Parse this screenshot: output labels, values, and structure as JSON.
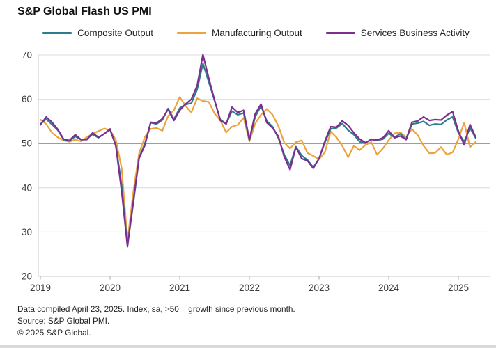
{
  "title": "S&P Global Flash US PMI",
  "footnotes": {
    "line1": "Data compiled April 23, 2025. Index, sa, >50 = growth since previous month.",
    "line2": "Source: S&P Global PMI.",
    "line3": "© 2025 S&P Global."
  },
  "chart_data": {
    "type": "line",
    "title": "S&P Global Flash US PMI",
    "frequency": "monthly",
    "x_start": "2019-01",
    "x_end": "2025-04",
    "x_tick_labels": [
      "2019",
      "2020",
      "2021",
      "2022",
      "2023",
      "2024",
      "2025"
    ],
    "y_ticks": [
      20,
      30,
      40,
      50,
      60,
      70
    ],
    "ylim": [
      20,
      70
    ],
    "baseline": 50,
    "grid": "horizontal",
    "legend_position": "top",
    "series": [
      {
        "name": "Composite Output",
        "color": "#2B7C8C",
        "values": [
          54.4,
          55.5,
          54.3,
          53.0,
          50.9,
          50.6,
          51.6,
          50.9,
          51.0,
          52.1,
          51.3,
          52.2,
          53.1,
          49.6,
          40.5,
          27.0,
          36.4,
          46.8,
          50.0,
          54.7,
          54.4,
          55.3,
          57.9,
          55.5,
          58.0,
          58.8,
          59.1,
          62.2,
          68.1,
          63.9,
          59.7,
          55.4,
          54.5,
          57.3,
          56.5,
          56.9,
          50.8,
          56.0,
          58.5,
          55.1,
          53.8,
          51.2,
          47.5,
          45.0,
          49.3,
          47.3,
          46.3,
          44.6,
          46.6,
          50.2,
          53.3,
          53.5,
          54.5,
          53.0,
          52.0,
          50.4,
          50.1,
          51.0,
          50.7,
          51.0,
          52.3,
          51.4,
          52.2,
          50.9,
          54.4,
          54.6,
          55.0,
          54.1,
          54.4,
          54.3,
          55.3,
          56.0,
          52.4,
          50.4,
          53.5,
          51.2
        ]
      },
      {
        "name": "Manufacturing Output",
        "color": "#EBA33C",
        "values": [
          55.4,
          54.4,
          52.4,
          51.4,
          50.7,
          50.4,
          50.9,
          50.5,
          51.5,
          52.2,
          52.8,
          53.4,
          53.0,
          50.8,
          44.4,
          28.0,
          39.0,
          47.8,
          51.5,
          53.3,
          53.5,
          52.9,
          56.2,
          57.5,
          60.5,
          58.5,
          57.0,
          60.2,
          59.6,
          59.4,
          56.8,
          55.2,
          52.5,
          53.8,
          54.2,
          55.8,
          50.5,
          54.5,
          56.5,
          57.8,
          56.5,
          53.9,
          50.2,
          48.9,
          50.3,
          50.7,
          47.9,
          47.2,
          46.5,
          48.0,
          52.7,
          51.4,
          49.5,
          46.9,
          49.5,
          48.5,
          49.7,
          50.3,
          47.5,
          48.9,
          50.8,
          52.3,
          52.5,
          51.5,
          53.3,
          51.9,
          49.5,
          47.8,
          47.9,
          49.2,
          47.5,
          48.0,
          51.0,
          54.7,
          49.2,
          50.4
        ]
      },
      {
        "name": "Services Business Activity",
        "color": "#7D2F90",
        "values": [
          54.2,
          56.0,
          54.8,
          53.2,
          51.0,
          50.7,
          52.0,
          50.9,
          50.9,
          52.4,
          51.4,
          52.2,
          53.3,
          49.4,
          39.1,
          26.7,
          36.9,
          46.7,
          49.6,
          54.8,
          54.6,
          55.6,
          57.7,
          55.2,
          57.5,
          58.9,
          60.0,
          63.1,
          70.1,
          64.8,
          59.8,
          55.2,
          54.4,
          58.2,
          57.0,
          57.5,
          50.9,
          56.7,
          58.9,
          54.7,
          53.5,
          51.6,
          47.0,
          44.1,
          49.2,
          46.6,
          46.1,
          44.4,
          46.6,
          50.5,
          53.8,
          53.7,
          55.1,
          54.1,
          52.4,
          51.0,
          50.2,
          50.9,
          50.8,
          51.3,
          52.9,
          51.3,
          51.7,
          50.9,
          54.8,
          55.1,
          56.0,
          55.2,
          55.4,
          55.3,
          56.4,
          57.2,
          52.8,
          49.7,
          54.3,
          51.4
        ]
      }
    ]
  }
}
